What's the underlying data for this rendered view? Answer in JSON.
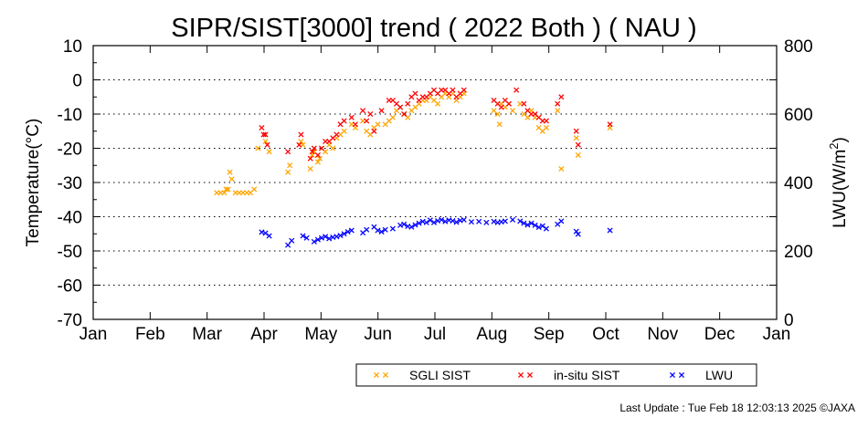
{
  "chart_data": {
    "type": "scatter",
    "title": "SIPR/SIST[3000] trend ( 2022 Both ) ( NAU )",
    "ylabel": "Temperature(°C)",
    "y2label_main": "LWU(W/m",
    "y2label_sup": "2",
    "y2label_tail": ")",
    "xlim": [
      0,
      365
    ],
    "ylim": [
      -70,
      10
    ],
    "y2lim": [
      0,
      800
    ],
    "yticks": [
      "10",
      "0",
      "-10",
      "-20",
      "-30",
      "-40",
      "-50",
      "-60",
      "-70"
    ],
    "y2ticks": [
      "800",
      "600",
      "400",
      "200",
      "0"
    ],
    "xticks": [
      "Jan",
      "Feb",
      "Mar",
      "Apr",
      "May",
      "Jun",
      "Jul",
      "Aug",
      "Sep",
      "Oct",
      "Nov",
      "Dec",
      "Jan"
    ],
    "grid": "horizontal dotted",
    "legend_position": "bottom-right",
    "series": [
      {
        "name": "SGLI SIST",
        "color": "#ffa500",
        "axis": "left",
        "points": [
          [
            66,
            -33
          ],
          [
            68,
            -33
          ],
          [
            70,
            -33
          ],
          [
            71,
            -32
          ],
          [
            72,
            -32
          ],
          [
            73,
            -27
          ],
          [
            74,
            -29
          ],
          [
            76,
            -33
          ],
          [
            78,
            -33
          ],
          [
            80,
            -33
          ],
          [
            82,
            -33
          ],
          [
            84,
            -33
          ],
          [
            86,
            -32
          ],
          [
            88,
            -20
          ],
          [
            92,
            -18
          ],
          [
            94,
            -21
          ],
          [
            104,
            -27
          ],
          [
            105,
            -25
          ],
          [
            111,
            -18
          ],
          [
            112,
            -19
          ],
          [
            116,
            -26
          ],
          [
            117,
            -22
          ],
          [
            118,
            -21
          ],
          [
            120,
            -24
          ],
          [
            121,
            -23
          ],
          [
            122,
            -20
          ],
          [
            124,
            -21
          ],
          [
            126,
            -19
          ],
          [
            128,
            -20
          ],
          [
            130,
            -17
          ],
          [
            132,
            -16
          ],
          [
            134,
            -15
          ],
          [
            138,
            -13
          ],
          [
            140,
            -14
          ],
          [
            144,
            -12
          ],
          [
            146,
            -15
          ],
          [
            148,
            -16
          ],
          [
            150,
            -14
          ],
          [
            152,
            -13
          ],
          [
            156,
            -13
          ],
          [
            158,
            -12
          ],
          [
            160,
            -11
          ],
          [
            162,
            -9
          ],
          [
            164,
            -8
          ],
          [
            166,
            -10
          ],
          [
            168,
            -11
          ],
          [
            170,
            -9
          ],
          [
            172,
            -8
          ],
          [
            174,
            -7
          ],
          [
            176,
            -6
          ],
          [
            178,
            -6
          ],
          [
            180,
            -5
          ],
          [
            182,
            -6
          ],
          [
            184,
            -7
          ],
          [
            186,
            -5
          ],
          [
            188,
            -4
          ],
          [
            190,
            -5
          ],
          [
            192,
            -4
          ],
          [
            194,
            -6
          ],
          [
            196,
            -5
          ],
          [
            198,
            -4
          ],
          [
            214,
            -9
          ],
          [
            216,
            -10
          ],
          [
            217,
            -13
          ],
          [
            218,
            -7
          ],
          [
            220,
            -8
          ],
          [
            222,
            -7
          ],
          [
            224,
            -9
          ],
          [
            228,
            -7
          ],
          [
            230,
            -10
          ],
          [
            232,
            -11
          ],
          [
            234,
            -9
          ],
          [
            236,
            -11
          ],
          [
            238,
            -14
          ],
          [
            240,
            -15
          ],
          [
            242,
            -14
          ],
          [
            248,
            -9
          ],
          [
            250,
            -26
          ],
          [
            258,
            -17
          ],
          [
            259,
            -22
          ],
          [
            276,
            -14
          ]
        ]
      },
      {
        "name": "in-situ SIST",
        "color": "#ff0000",
        "axis": "left",
        "points": [
          [
            90,
            -14
          ],
          [
            91,
            -16
          ],
          [
            92,
            -16
          ],
          [
            93,
            -19
          ],
          [
            104,
            -21
          ],
          [
            110,
            -19
          ],
          [
            111,
            -16
          ],
          [
            116,
            -23
          ],
          [
            117,
            -21
          ],
          [
            118,
            -20
          ],
          [
            120,
            -22
          ],
          [
            122,
            -20
          ],
          [
            124,
            -18
          ],
          [
            126,
            -18
          ],
          [
            128,
            -17
          ],
          [
            130,
            -16
          ],
          [
            132,
            -13
          ],
          [
            134,
            -12
          ],
          [
            138,
            -11
          ],
          [
            140,
            -13
          ],
          [
            144,
            -9
          ],
          [
            146,
            -12
          ],
          [
            148,
            -10
          ],
          [
            150,
            -15
          ],
          [
            154,
            -9
          ],
          [
            158,
            -6
          ],
          [
            160,
            -6
          ],
          [
            162,
            -7
          ],
          [
            164,
            -8
          ],
          [
            166,
            -10
          ],
          [
            168,
            -7
          ],
          [
            170,
            -5
          ],
          [
            172,
            -4
          ],
          [
            174,
            -6
          ],
          [
            176,
            -5
          ],
          [
            178,
            -5
          ],
          [
            180,
            -4
          ],
          [
            182,
            -3
          ],
          [
            184,
            -4
          ],
          [
            186,
            -3
          ],
          [
            188,
            -3
          ],
          [
            190,
            -4
          ],
          [
            192,
            -3
          ],
          [
            194,
            -5
          ],
          [
            196,
            -4
          ],
          [
            198,
            -3
          ],
          [
            214,
            -6
          ],
          [
            216,
            -7
          ],
          [
            218,
            -8
          ],
          [
            220,
            -6
          ],
          [
            222,
            -7
          ],
          [
            226,
            -3
          ],
          [
            230,
            -7
          ],
          [
            232,
            -9
          ],
          [
            234,
            -10
          ],
          [
            236,
            -10
          ],
          [
            238,
            -11
          ],
          [
            240,
            -12
          ],
          [
            242,
            -12
          ],
          [
            248,
            -7
          ],
          [
            250,
            -5
          ],
          [
            258,
            -15
          ],
          [
            259,
            -19
          ],
          [
            276,
            -13
          ]
        ]
      },
      {
        "name": "LWU",
        "color": "#0000ff",
        "axis": "right",
        "points": [
          [
            90,
            255
          ],
          [
            92,
            252
          ],
          [
            94,
            244
          ],
          [
            104,
            217
          ],
          [
            106,
            230
          ],
          [
            112,
            244
          ],
          [
            114,
            238
          ],
          [
            118,
            227
          ],
          [
            120,
            233
          ],
          [
            122,
            238
          ],
          [
            124,
            242
          ],
          [
            126,
            236
          ],
          [
            128,
            240
          ],
          [
            130,
            242
          ],
          [
            132,
            245
          ],
          [
            134,
            250
          ],
          [
            136,
            256
          ],
          [
            138,
            260
          ],
          [
            144,
            253
          ],
          [
            146,
            262
          ],
          [
            150,
            270
          ],
          [
            152,
            260
          ],
          [
            154,
            256
          ],
          [
            156,
            262
          ],
          [
            160,
            265
          ],
          [
            164,
            275
          ],
          [
            166,
            278
          ],
          [
            168,
            272
          ],
          [
            170,
            270
          ],
          [
            172,
            276
          ],
          [
            174,
            281
          ],
          [
            176,
            286
          ],
          [
            178,
            283
          ],
          [
            180,
            290
          ],
          [
            182,
            283
          ],
          [
            184,
            288
          ],
          [
            186,
            291
          ],
          [
            188,
            286
          ],
          [
            190,
            290
          ],
          [
            192,
            288
          ],
          [
            194,
            284
          ],
          [
            196,
            289
          ],
          [
            198,
            291
          ],
          [
            202,
            285
          ],
          [
            206,
            286
          ],
          [
            210,
            283
          ],
          [
            214,
            286
          ],
          [
            216,
            283
          ],
          [
            218,
            285
          ],
          [
            220,
            287
          ],
          [
            224,
            291
          ],
          [
            228,
            287
          ],
          [
            230,
            281
          ],
          [
            232,
            276
          ],
          [
            234,
            281
          ],
          [
            236,
            275
          ],
          [
            238,
            269
          ],
          [
            240,
            273
          ],
          [
            242,
            265
          ],
          [
            248,
            278
          ],
          [
            250,
            287
          ],
          [
            258,
            257
          ],
          [
            259,
            249
          ],
          [
            276,
            260
          ]
        ]
      }
    ]
  },
  "footer": {
    "last_update": "Last Update : Tue Feb 18 12:03:13 2025 ©JAXA"
  }
}
